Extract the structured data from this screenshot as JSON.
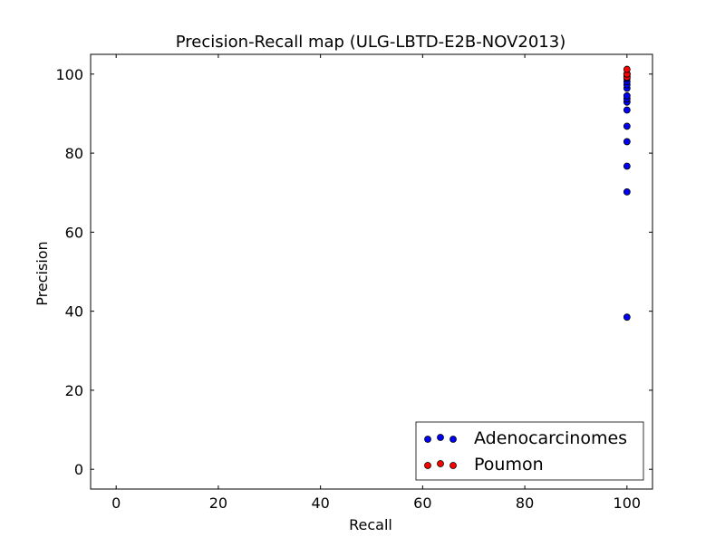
{
  "chart_data": {
    "type": "scatter",
    "title": "Precision-Recall map (ULG-LBTD-E2B-NOV2013)",
    "xlabel": "Recall",
    "ylabel": "Precision",
    "xlim": [
      -5,
      105
    ],
    "ylim": [
      -5,
      105
    ],
    "x_ticks": [
      0,
      20,
      40,
      60,
      80,
      100
    ],
    "y_ticks": [
      0,
      20,
      40,
      60,
      80,
      100
    ],
    "grid": false,
    "legend_position": "bottom-right",
    "series": [
      {
        "name": "Adenocarcinomes",
        "color": "#0000ff",
        "x": [
          100,
          100,
          100,
          100,
          100,
          100,
          100,
          100,
          100,
          100,
          100,
          100,
          100,
          100,
          100,
          100
        ],
        "y": [
          38.5,
          70.2,
          76.7,
          82.9,
          86.8,
          90.9,
          92.9,
          93.7,
          94.5,
          96.4,
          97.3,
          98.1,
          98.9,
          99.5,
          100,
          100
        ]
      },
      {
        "name": "Poumon",
        "color": "#ff0000",
        "x": [
          100,
          100,
          100
        ],
        "y": [
          99.2,
          100.0,
          101.2
        ]
      }
    ]
  }
}
